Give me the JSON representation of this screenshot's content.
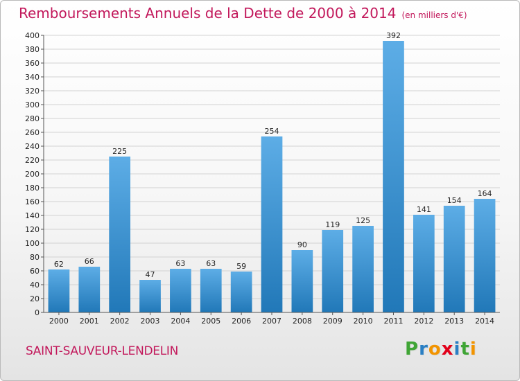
{
  "title": "Remboursements Annuels de la Dette de 2000 à 2014",
  "unit": "(en milliers d'€)",
  "commune": "SAINT-SAUVEUR-LENDELIN",
  "brand": {
    "letters": [
      "P",
      "r",
      "o",
      "x",
      "i",
      "t",
      "i"
    ],
    "colors": [
      "#3fa535",
      "#2a7fc4",
      "#f29400",
      "#e2001a",
      "#2a7fc4",
      "#3fa535",
      "#f29400"
    ]
  },
  "colors": {
    "bar_light": "#5dade6",
    "bar_dark": "#2178b8",
    "grid": "#d2d2d2",
    "title": "#c2185b"
  },
  "chart_data": {
    "type": "bar",
    "title": "Remboursements Annuels de la Dette de 2000 à 2014",
    "ylabel": "",
    "xlabel": "",
    "categories": [
      "2000",
      "2001",
      "2002",
      "2003",
      "2004",
      "2005",
      "2006",
      "2007",
      "2008",
      "2009",
      "2010",
      "2011",
      "2012",
      "2013",
      "2014"
    ],
    "values": [
      62,
      66,
      225,
      47,
      63,
      63,
      59,
      254,
      90,
      119,
      125,
      392,
      141,
      154,
      164
    ],
    "ylim": [
      0,
      400
    ],
    "ytick_step": 20,
    "grid": true
  }
}
